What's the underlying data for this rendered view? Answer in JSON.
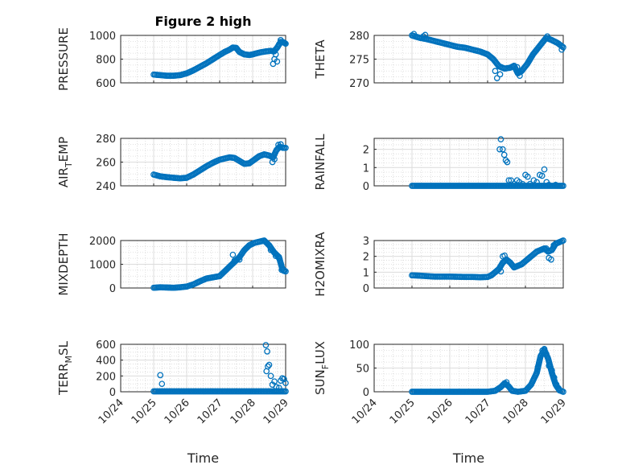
{
  "marker_color": "#0072BD",
  "chart_data": [
    {
      "type": "scatter",
      "title": "Figure 2 high",
      "ylabel": "PRESSURE",
      "ylabel_sub": "",
      "ylabel_tail": "",
      "xlim": [
        "10/24",
        "10/29"
      ],
      "ylim": [
        600,
        1000
      ],
      "yticks": [
        600,
        800,
        1000
      ],
      "xticks": [],
      "xlabel": "",
      "grid": true,
      "trace": [
        [
          "10/25.00",
          670
        ],
        [
          "10/25.20",
          665
        ],
        [
          "10/25.40",
          660
        ],
        [
          "10/25.60",
          660
        ],
        [
          "10/25.80",
          665
        ],
        [
          "10/26.00",
          680
        ],
        [
          "10/26.20",
          705
        ],
        [
          "10/26.40",
          735
        ],
        [
          "10/26.60",
          765
        ],
        [
          "10/26.80",
          800
        ],
        [
          "10/27.00",
          835
        ],
        [
          "10/27.15",
          860
        ],
        [
          "10/27.30",
          880
        ],
        [
          "10/27.40",
          898
        ],
        [
          "10/27.50",
          895
        ],
        [
          "10/27.60",
          860
        ],
        [
          "10/27.75",
          840
        ],
        [
          "10/27.90",
          835
        ],
        [
          "10/28.00",
          840
        ],
        [
          "10/28.10",
          848
        ],
        [
          "10/28.25",
          858
        ],
        [
          "10/28.40",
          865
        ],
        [
          "10/28.55",
          870
        ],
        [
          "10/28.65",
          865
        ],
        [
          "10/28.75",
          900
        ],
        [
          "10/28.85",
          945
        ],
        [
          "10/28.95",
          940
        ],
        [
          "10/29.00",
          930
        ]
      ],
      "outliers": [
        [
          "10/28.62",
          760
        ],
        [
          "10/28.66",
          800
        ],
        [
          "10/28.70",
          840
        ],
        [
          "10/28.74",
          780
        ],
        [
          "10/28.80",
          925
        ],
        [
          "10/28.85",
          960
        ],
        [
          "10/28.90",
          945
        ]
      ]
    },
    {
      "type": "scatter",
      "title": "",
      "ylabel": "THETA",
      "ylabel_sub": "",
      "ylabel_tail": "",
      "xlim": [
        "10/24",
        "10/29"
      ],
      "ylim": [
        270,
        280
      ],
      "yticks": [
        270,
        275,
        280
      ],
      "xticks": [],
      "xlabel": "",
      "grid": true,
      "trace": [
        [
          "10/25.00",
          280
        ],
        [
          "10/25.20",
          279.5
        ],
        [
          "10/25.40",
          279.2
        ],
        [
          "10/25.60",
          278.8
        ],
        [
          "10/25.80",
          278.4
        ],
        [
          "10/26.00",
          278.0
        ],
        [
          "10/26.20",
          277.6
        ],
        [
          "10/26.40",
          277.4
        ],
        [
          "10/26.60",
          277.0
        ],
        [
          "10/26.80",
          276.6
        ],
        [
          "10/27.00",
          276.0
        ],
        [
          "10/27.15",
          275.0
        ],
        [
          "10/27.30",
          273.5
        ],
        [
          "10/27.45",
          273.0
        ],
        [
          "10/27.60",
          273.2
        ],
        [
          "10/27.70",
          273.6
        ],
        [
          "10/27.80",
          272.0
        ],
        [
          "10/27.90",
          272.5
        ],
        [
          "10/28.05",
          274.0
        ],
        [
          "10/28.20",
          276.0
        ],
        [
          "10/28.40",
          278.0
        ],
        [
          "10/28.55",
          279.5
        ],
        [
          "10/28.70",
          279.0
        ],
        [
          "10/28.85",
          278.4
        ],
        [
          "10/29.00",
          277.5
        ]
      ],
      "outliers": [
        [
          "10/25.05",
          280.3
        ],
        [
          "10/25.30",
          279.8
        ],
        [
          "10/25.35",
          280.1
        ],
        [
          "10/27.20",
          272.5
        ],
        [
          "10/27.25",
          271.0
        ],
        [
          "10/27.33",
          271.8
        ],
        [
          "10/27.78",
          273.3
        ],
        [
          "10/27.85",
          271.5
        ],
        [
          "10/28.58",
          279.8
        ],
        [
          "10/28.96",
          277.0
        ]
      ]
    },
    {
      "type": "scatter",
      "title": "",
      "ylabel": "AIR",
      "ylabel_sub": "T",
      "ylabel_tail": "EMP",
      "xlim": [
        "10/24",
        "10/29"
      ],
      "ylim": [
        240,
        280
      ],
      "yticks": [
        240,
        260,
        280
      ],
      "xticks": [],
      "xlabel": "",
      "grid": true,
      "trace": [
        [
          "10/25.00",
          249.5
        ],
        [
          "10/25.20",
          248.0
        ],
        [
          "10/25.40",
          247.3
        ],
        [
          "10/25.60",
          246.8
        ],
        [
          "10/25.80",
          246.3
        ],
        [
          "10/26.00",
          246.8
        ],
        [
          "10/26.20",
          249.5
        ],
        [
          "10/26.40",
          253.0
        ],
        [
          "10/26.60",
          256.5
        ],
        [
          "10/26.80",
          259.5
        ],
        [
          "10/27.00",
          262.0
        ],
        [
          "10/27.15",
          263.0
        ],
        [
          "10/27.30",
          264.0
        ],
        [
          "10/27.45",
          263.5
        ],
        [
          "10/27.60",
          261.0
        ],
        [
          "10/27.75",
          258.5
        ],
        [
          "10/27.90",
          259.0
        ],
        [
          "10/28.05",
          262.0
        ],
        [
          "10/28.20",
          265.0
        ],
        [
          "10/28.35",
          266.5
        ],
        [
          "10/28.50",
          265.5
        ],
        [
          "10/28.62",
          264.0
        ],
        [
          "10/28.72",
          270.0
        ],
        [
          "10/28.82",
          273.0
        ],
        [
          "10/28.92",
          272.0
        ],
        [
          "10/29.00",
          272.0
        ]
      ],
      "outliers": [
        [
          "10/28.60",
          260.0
        ],
        [
          "10/28.66",
          262.5
        ],
        [
          "10/28.78",
          274.5
        ],
        [
          "10/28.85",
          275.0
        ]
      ]
    },
    {
      "type": "scatter",
      "title": "",
      "ylabel": "RAINFALL",
      "ylabel_sub": "",
      "ylabel_tail": "",
      "xlim": [
        "10/24",
        "10/29"
      ],
      "ylim": [
        0,
        2.6
      ],
      "yticks": [
        0,
        1,
        2
      ],
      "xticks": [],
      "xlabel": "",
      "grid": true,
      "trace": [
        [
          "10/25.00",
          0
        ],
        [
          "10/25.50",
          0
        ],
        [
          "10/26.00",
          0
        ],
        [
          "10/26.50",
          0
        ],
        [
          "10/27.00",
          0
        ],
        [
          "10/27.30",
          0
        ],
        [
          "10/27.60",
          0
        ],
        [
          "10/27.90",
          0
        ],
        [
          "10/28.20",
          0
        ],
        [
          "10/28.50",
          0
        ],
        [
          "10/28.80",
          0
        ],
        [
          "10/29.00",
          0
        ]
      ],
      "outliers": [
        [
          "10/27.35",
          2.55
        ],
        [
          "10/27.32",
          2.0
        ],
        [
          "10/27.40",
          2.0
        ],
        [
          "10/27.44",
          1.7
        ],
        [
          "10/27.48",
          1.4
        ],
        [
          "10/27.52",
          1.3
        ],
        [
          "10/27.56",
          0.3
        ],
        [
          "10/27.62",
          0.3
        ],
        [
          "10/27.70",
          0.1
        ],
        [
          "10/27.78",
          0.3
        ],
        [
          "10/27.84",
          0.2
        ],
        [
          "10/27.92",
          0.1
        ],
        [
          "10/28.00",
          0.6
        ],
        [
          "10/28.06",
          0.5
        ],
        [
          "10/28.12",
          0.1
        ],
        [
          "10/28.22",
          0.3
        ],
        [
          "10/28.30",
          0.2
        ],
        [
          "10/28.38",
          0.6
        ],
        [
          "10/28.44",
          0.55
        ],
        [
          "10/28.50",
          0.9
        ],
        [
          "10/28.56",
          0.2
        ],
        [
          "10/28.62",
          0.05
        ],
        [
          "10/28.80",
          0.05
        ]
      ]
    },
    {
      "type": "scatter",
      "title": "",
      "ylabel": "MIXDEPTH",
      "ylabel_sub": "",
      "ylabel_tail": "",
      "xlim": [
        "10/24",
        "10/29"
      ],
      "ylim": [
        0,
        2000
      ],
      "yticks": [
        0,
        1000,
        2000
      ],
      "xticks": [],
      "xlabel": "",
      "grid": true,
      "trace": [
        [
          "10/25.00",
          10
        ],
        [
          "10/25.20",
          30
        ],
        [
          "10/25.40",
          20
        ],
        [
          "10/25.60",
          10
        ],
        [
          "10/25.80",
          30
        ],
        [
          "10/26.00",
          60
        ],
        [
          "10/26.20",
          150
        ],
        [
          "10/26.40",
          280
        ],
        [
          "10/26.60",
          400
        ],
        [
          "10/26.80",
          450
        ],
        [
          "10/27.00",
          500
        ],
        [
          "10/27.15",
          700
        ],
        [
          "10/27.30",
          900
        ],
        [
          "10/27.45",
          1100
        ],
        [
          "10/27.60",
          1300
        ],
        [
          "10/27.75",
          1600
        ],
        [
          "10/27.90",
          1800
        ],
        [
          "10/28.05",
          1900
        ],
        [
          "10/28.20",
          1950
        ],
        [
          "10/28.35",
          2000
        ],
        [
          "10/28.50",
          1800
        ],
        [
          "10/28.65",
          1500
        ],
        [
          "10/28.80",
          1300
        ],
        [
          "10/28.90",
          800
        ],
        [
          "10/29.00",
          700
        ]
      ],
      "outliers": [
        [
          "10/27.40",
          1400
        ],
        [
          "10/27.45",
          1150
        ],
        [
          "10/27.60",
          1200
        ],
        [
          "10/28.55",
          1600
        ],
        [
          "10/28.70",
          1350
        ],
        [
          "10/28.80",
          1250
        ],
        [
          "10/28.88",
          760
        ],
        [
          "10/28.95",
          720
        ]
      ]
    },
    {
      "type": "scatter",
      "title": "",
      "ylabel": "H2OMIXRA",
      "ylabel_sub": "",
      "ylabel_tail": "",
      "xlim": [
        "10/24",
        "10/29"
      ],
      "ylim": [
        0,
        3
      ],
      "yticks": [
        0,
        1,
        2,
        3
      ],
      "xticks": [],
      "xlabel": "",
      "grid": true,
      "trace": [
        [
          "10/25.00",
          0.8
        ],
        [
          "10/25.20",
          0.78
        ],
        [
          "10/25.40",
          0.75
        ],
        [
          "10/25.60",
          0.72
        ],
        [
          "10/25.80",
          0.72
        ],
        [
          "10/26.00",
          0.72
        ],
        [
          "10/26.20",
          0.71
        ],
        [
          "10/26.40",
          0.7
        ],
        [
          "10/26.60",
          0.7
        ],
        [
          "10/26.80",
          0.68
        ],
        [
          "10/27.00",
          0.7
        ],
        [
          "10/27.10",
          0.8
        ],
        [
          "10/27.20",
          1.0
        ],
        [
          "10/27.30",
          1.2
        ],
        [
          "10/27.40",
          1.6
        ],
        [
          "10/27.50",
          1.8
        ],
        [
          "10/27.60",
          1.6
        ],
        [
          "10/27.70",
          1.3
        ],
        [
          "10/27.80",
          1.4
        ],
        [
          "10/27.90",
          1.5
        ],
        [
          "10/28.00",
          1.7
        ],
        [
          "10/28.10",
          1.9
        ],
        [
          "10/28.20",
          2.1
        ],
        [
          "10/28.30",
          2.3
        ],
        [
          "10/28.40",
          2.4
        ],
        [
          "10/28.50",
          2.5
        ],
        [
          "10/28.60",
          2.3
        ],
        [
          "10/28.70",
          2.4
        ],
        [
          "10/28.80",
          2.8
        ],
        [
          "10/28.90",
          2.9
        ],
        [
          "10/29.00",
          3.0
        ]
      ],
      "outliers": [
        [
          "10/27.35",
          1.05
        ],
        [
          "10/27.40",
          2.0
        ],
        [
          "10/27.45",
          2.05
        ],
        [
          "10/28.55",
          2.5
        ],
        [
          "10/28.62",
          1.9
        ],
        [
          "10/28.68",
          1.8
        ],
        [
          "10/28.75",
          2.7
        ],
        [
          "10/28.85",
          2.85
        ]
      ]
    },
    {
      "type": "scatter",
      "title": "",
      "ylabel": "TERR",
      "ylabel_sub": "M",
      "ylabel_tail": "SL",
      "xlim": [
        "10/24",
        "10/29"
      ],
      "ylim": [
        0,
        600
      ],
      "yticks": [
        0,
        200,
        400,
        600
      ],
      "xticks": [
        "10/24",
        "10/25",
        "10/26",
        "10/27",
        "10/28",
        "10/29"
      ],
      "xlabel": "Time",
      "grid": true,
      "trace": [
        [
          "10/25.00",
          5
        ],
        [
          "10/25.50",
          5
        ],
        [
          "10/26.00",
          5
        ],
        [
          "10/26.50",
          5
        ],
        [
          "10/27.00",
          5
        ],
        [
          "10/27.50",
          5
        ],
        [
          "10/28.00",
          5
        ],
        [
          "10/28.30",
          5
        ],
        [
          "10/28.60",
          5
        ],
        [
          "10/28.80",
          5
        ],
        [
          "10/29.00",
          5
        ]
      ],
      "outliers": [
        [
          "10/25.20",
          210
        ],
        [
          "10/25.25",
          100
        ],
        [
          "10/28.40",
          590
        ],
        [
          "10/28.44",
          510
        ],
        [
          "10/28.42",
          260
        ],
        [
          "10/28.46",
          320
        ],
        [
          "10/28.50",
          340
        ],
        [
          "10/28.55",
          200
        ],
        [
          "10/28.60",
          90
        ],
        [
          "10/28.66",
          130
        ],
        [
          "10/28.72",
          60
        ],
        [
          "10/28.80",
          50
        ],
        [
          "10/28.85",
          140
        ],
        [
          "10/28.90",
          170
        ],
        [
          "10/28.95",
          160
        ],
        [
          "10/29.00",
          110
        ]
      ]
    },
    {
      "type": "scatter",
      "title": "",
      "ylabel": "SUN",
      "ylabel_sub": "F",
      "ylabel_tail": "LUX",
      "xlim": [
        "10/24",
        "10/29"
      ],
      "ylim": [
        0,
        100
      ],
      "yticks": [
        0,
        50,
        100
      ],
      "xticks": [
        "10/24",
        "10/25",
        "10/26",
        "10/27",
        "10/28",
        "10/29"
      ],
      "xlabel": "Time",
      "grid": true,
      "trace": [
        [
          "10/25.00",
          0
        ],
        [
          "10/25.50",
          0
        ],
        [
          "10/26.00",
          0
        ],
        [
          "10/26.50",
          0
        ],
        [
          "10/27.00",
          0
        ],
        [
          "10/27.20",
          2
        ],
        [
          "10/27.35",
          10
        ],
        [
          "10/27.45",
          18
        ],
        [
          "10/27.55",
          12
        ],
        [
          "10/27.65",
          2
        ],
        [
          "10/27.80",
          0
        ],
        [
          "10/28.00",
          2
        ],
        [
          "10/28.15",
          15
        ],
        [
          "10/28.30",
          40
        ],
        [
          "10/28.40",
          75
        ],
        [
          "10/28.50",
          88
        ],
        [
          "10/28.60",
          70
        ],
        [
          "10/28.70",
          40
        ],
        [
          "10/28.80",
          15
        ],
        [
          "10/28.90",
          3
        ],
        [
          "10/29.00",
          0
        ]
      ],
      "outliers": [
        [
          "10/27.50",
          20
        ],
        [
          "10/28.33",
          52
        ],
        [
          "10/28.45",
          87
        ],
        [
          "10/28.50",
          90
        ],
        [
          "10/28.55",
          80
        ],
        [
          "10/28.62",
          55
        ],
        [
          "10/28.70",
          45
        ],
        [
          "10/28.76",
          30
        ],
        [
          "10/28.82",
          15
        ],
        [
          "10/28.88",
          7
        ]
      ]
    }
  ]
}
